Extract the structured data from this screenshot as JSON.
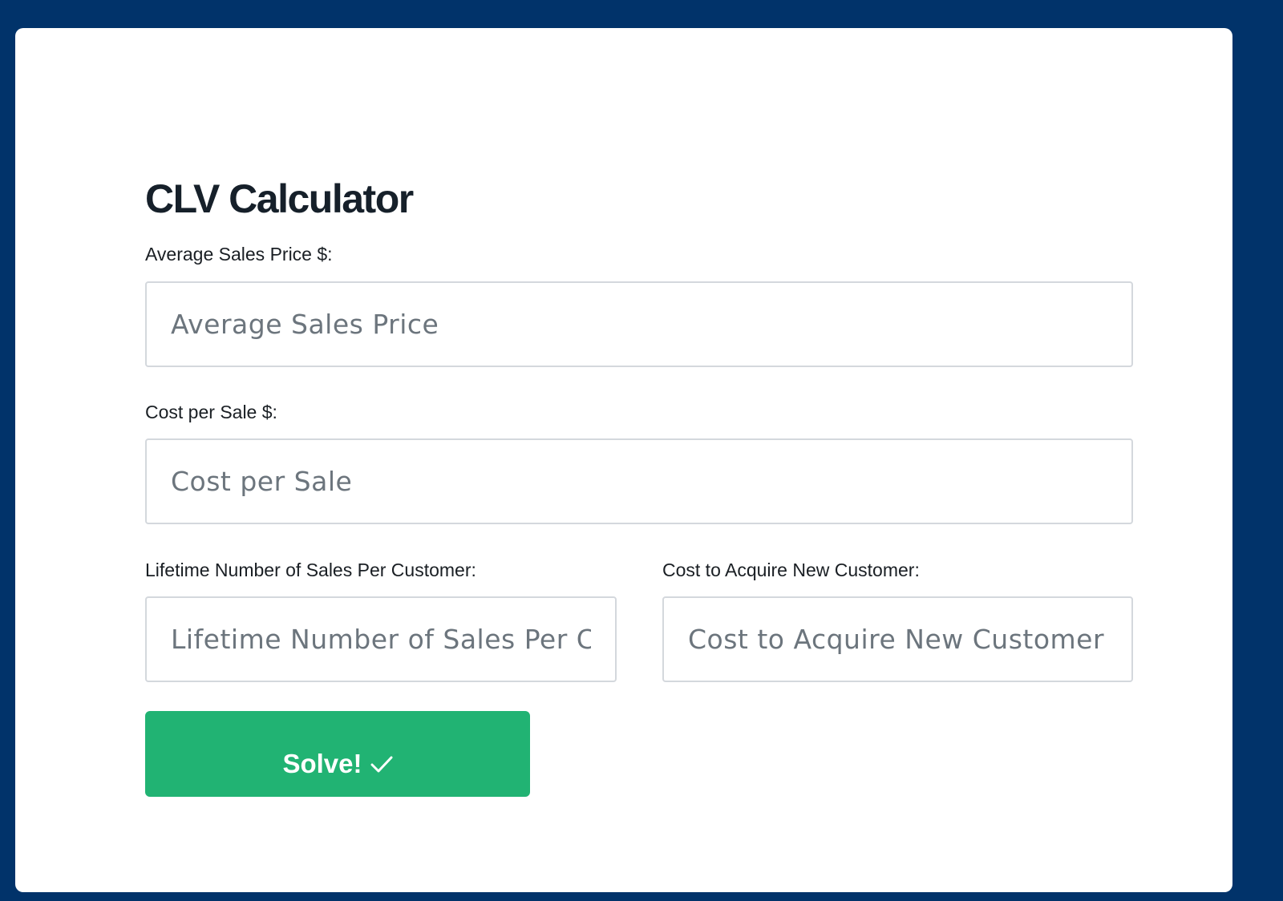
{
  "title": "CLV Calculator",
  "fields": [
    {
      "label": "Average Sales Price $:",
      "placeholder": "Average Sales Price",
      "value": ""
    },
    {
      "label": "Cost per Sale $:",
      "placeholder": "Cost per Sale",
      "value": ""
    },
    {
      "label": "Lifetime Number of Sales Per Customer:",
      "placeholder": "Lifetime Number of Sales Per Customer",
      "value": ""
    },
    {
      "label": "Cost to Acquire New Customer:",
      "placeholder": "Cost to Acquire New Customer",
      "value": ""
    }
  ],
  "solve_button": {
    "label": "Solve!",
    "icon": "checkmark-icon"
  },
  "colors": {
    "background": "#01336a",
    "button": "#21b373",
    "card": "#ffffff"
  }
}
